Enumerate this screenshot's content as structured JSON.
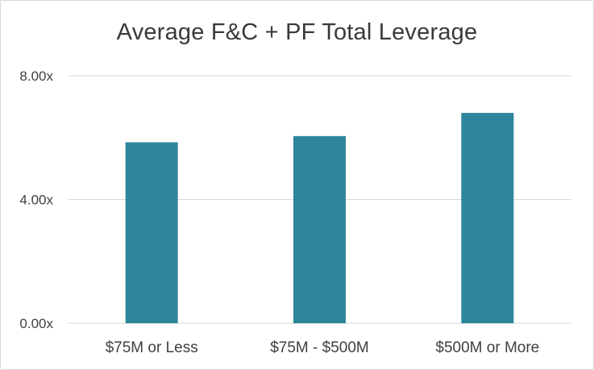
{
  "chart_data": {
    "type": "bar",
    "title": "Average F&C + PF Total Leverage",
    "categories": [
      "$75M or Less",
      "$75M - $500M",
      "$500M or More"
    ],
    "values": [
      5.85,
      6.05,
      6.8
    ],
    "yticks": [
      0,
      4,
      8
    ],
    "ytick_labels": [
      "0.00x",
      "4.00x",
      "8.00x"
    ],
    "ylim": [
      0,
      8
    ],
    "grid": true,
    "legend": "none",
    "bar_color": "#2e869c",
    "grid_color": "#d9d9d9"
  }
}
